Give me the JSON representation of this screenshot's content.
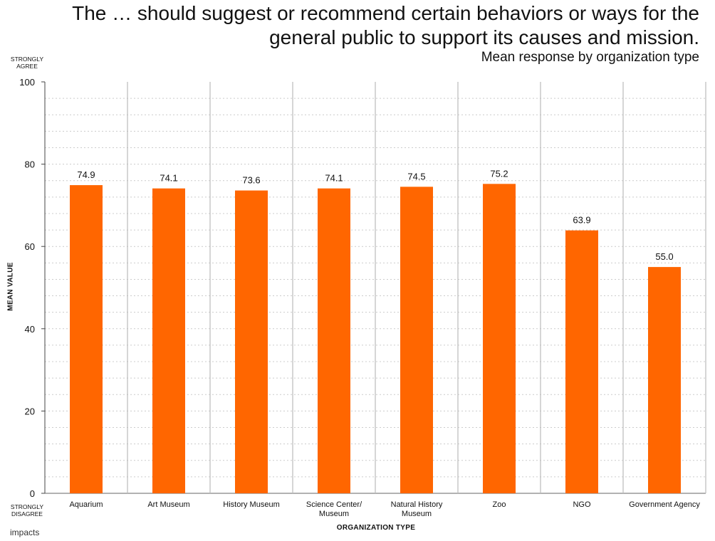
{
  "header": {
    "title_line1": "The … should suggest or recommend certain behaviors or ways for the",
    "title_line2": "general public to support its causes and mission.",
    "subtitle": "Mean response by organization type"
  },
  "axes": {
    "top_anchor_line1": "STRONGLY",
    "top_anchor_line2": "AGREE",
    "bottom_anchor_line1": "STRONGLY",
    "bottom_anchor_line2": "DISAGREE",
    "ylabel": "MEAN VALUE",
    "xlabel": "ORGANIZATION TYPE"
  },
  "brand": {
    "text": "impacts"
  },
  "colors": {
    "bar": "#FF6600",
    "grid": "#cccccc",
    "separator": "#bbbbbb"
  },
  "chart_data": {
    "type": "bar",
    "title": "The … should suggest or recommend certain behaviors or ways for the general public to support its causes and mission.",
    "subtitle": "Mean response by organization type",
    "xlabel": "ORGANIZATION TYPE",
    "ylabel": "MEAN VALUE",
    "ylim": [
      0,
      100
    ],
    "yticks": [
      0,
      20,
      40,
      60,
      80,
      100
    ],
    "categories": [
      [
        "Aquarium"
      ],
      [
        "Art Museum"
      ],
      [
        "History Museum"
      ],
      [
        "Science Center/",
        "Museum"
      ],
      [
        "Natural History",
        "Museum"
      ],
      [
        "Zoo"
      ],
      [
        "NGO"
      ],
      [
        "Government Agency"
      ]
    ],
    "values": [
      74.9,
      74.1,
      73.6,
      74.1,
      74.5,
      75.2,
      63.9,
      55.0
    ],
    "value_labels": [
      "74.9",
      "74.1",
      "73.6",
      "74.1",
      "74.5",
      "75.2",
      "63.9",
      "55.0"
    ],
    "grid": true,
    "legend": "none"
  }
}
